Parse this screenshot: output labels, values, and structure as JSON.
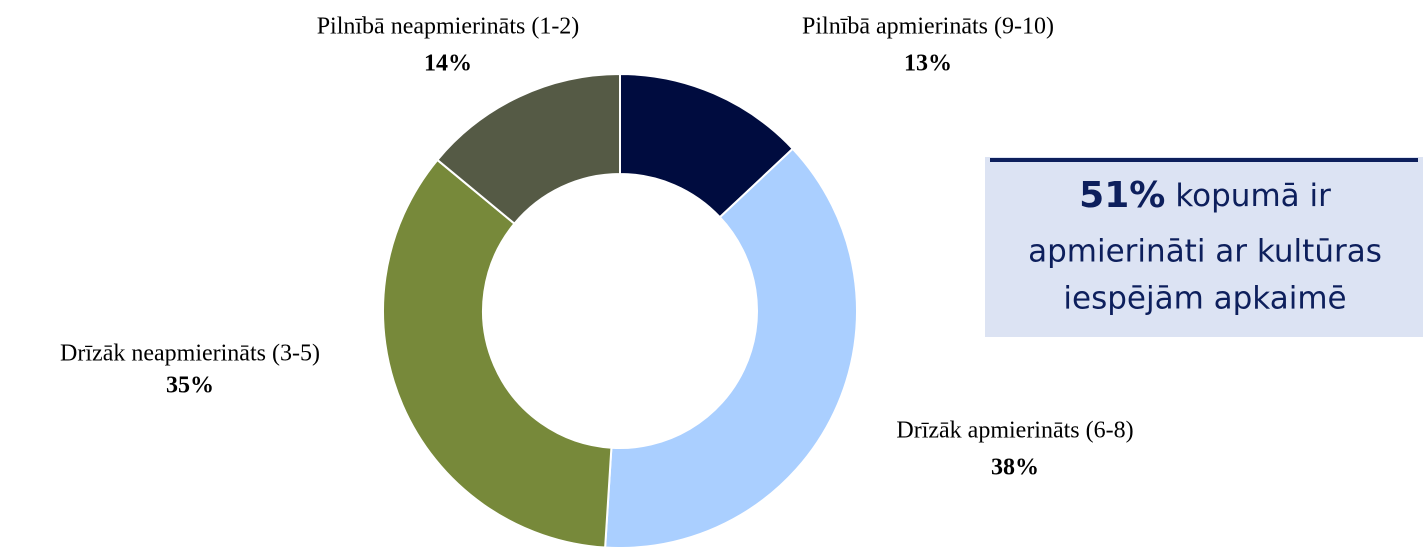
{
  "chart_data": {
    "type": "donut",
    "categories": [
      "Pilnībā apmierināts (9-10)",
      "Drīzāk apmierināts (6-8)",
      "Drīzāk neapmierināts (3-5)",
      "Pilnībā neapmierināts (1-2)"
    ],
    "values": [
      13,
      38,
      35,
      14
    ],
    "value_labels": [
      "13%",
      "38%",
      "35%",
      "14%"
    ],
    "colors": [
      "#000c3f",
      "#aacfff",
      "#77893a",
      "#555a45"
    ],
    "annotation": {
      "highlight": "51%",
      "lines": [
        "kopumā ir",
        "apmierināti ar kultūras",
        "iespējām apkaimē"
      ]
    }
  }
}
